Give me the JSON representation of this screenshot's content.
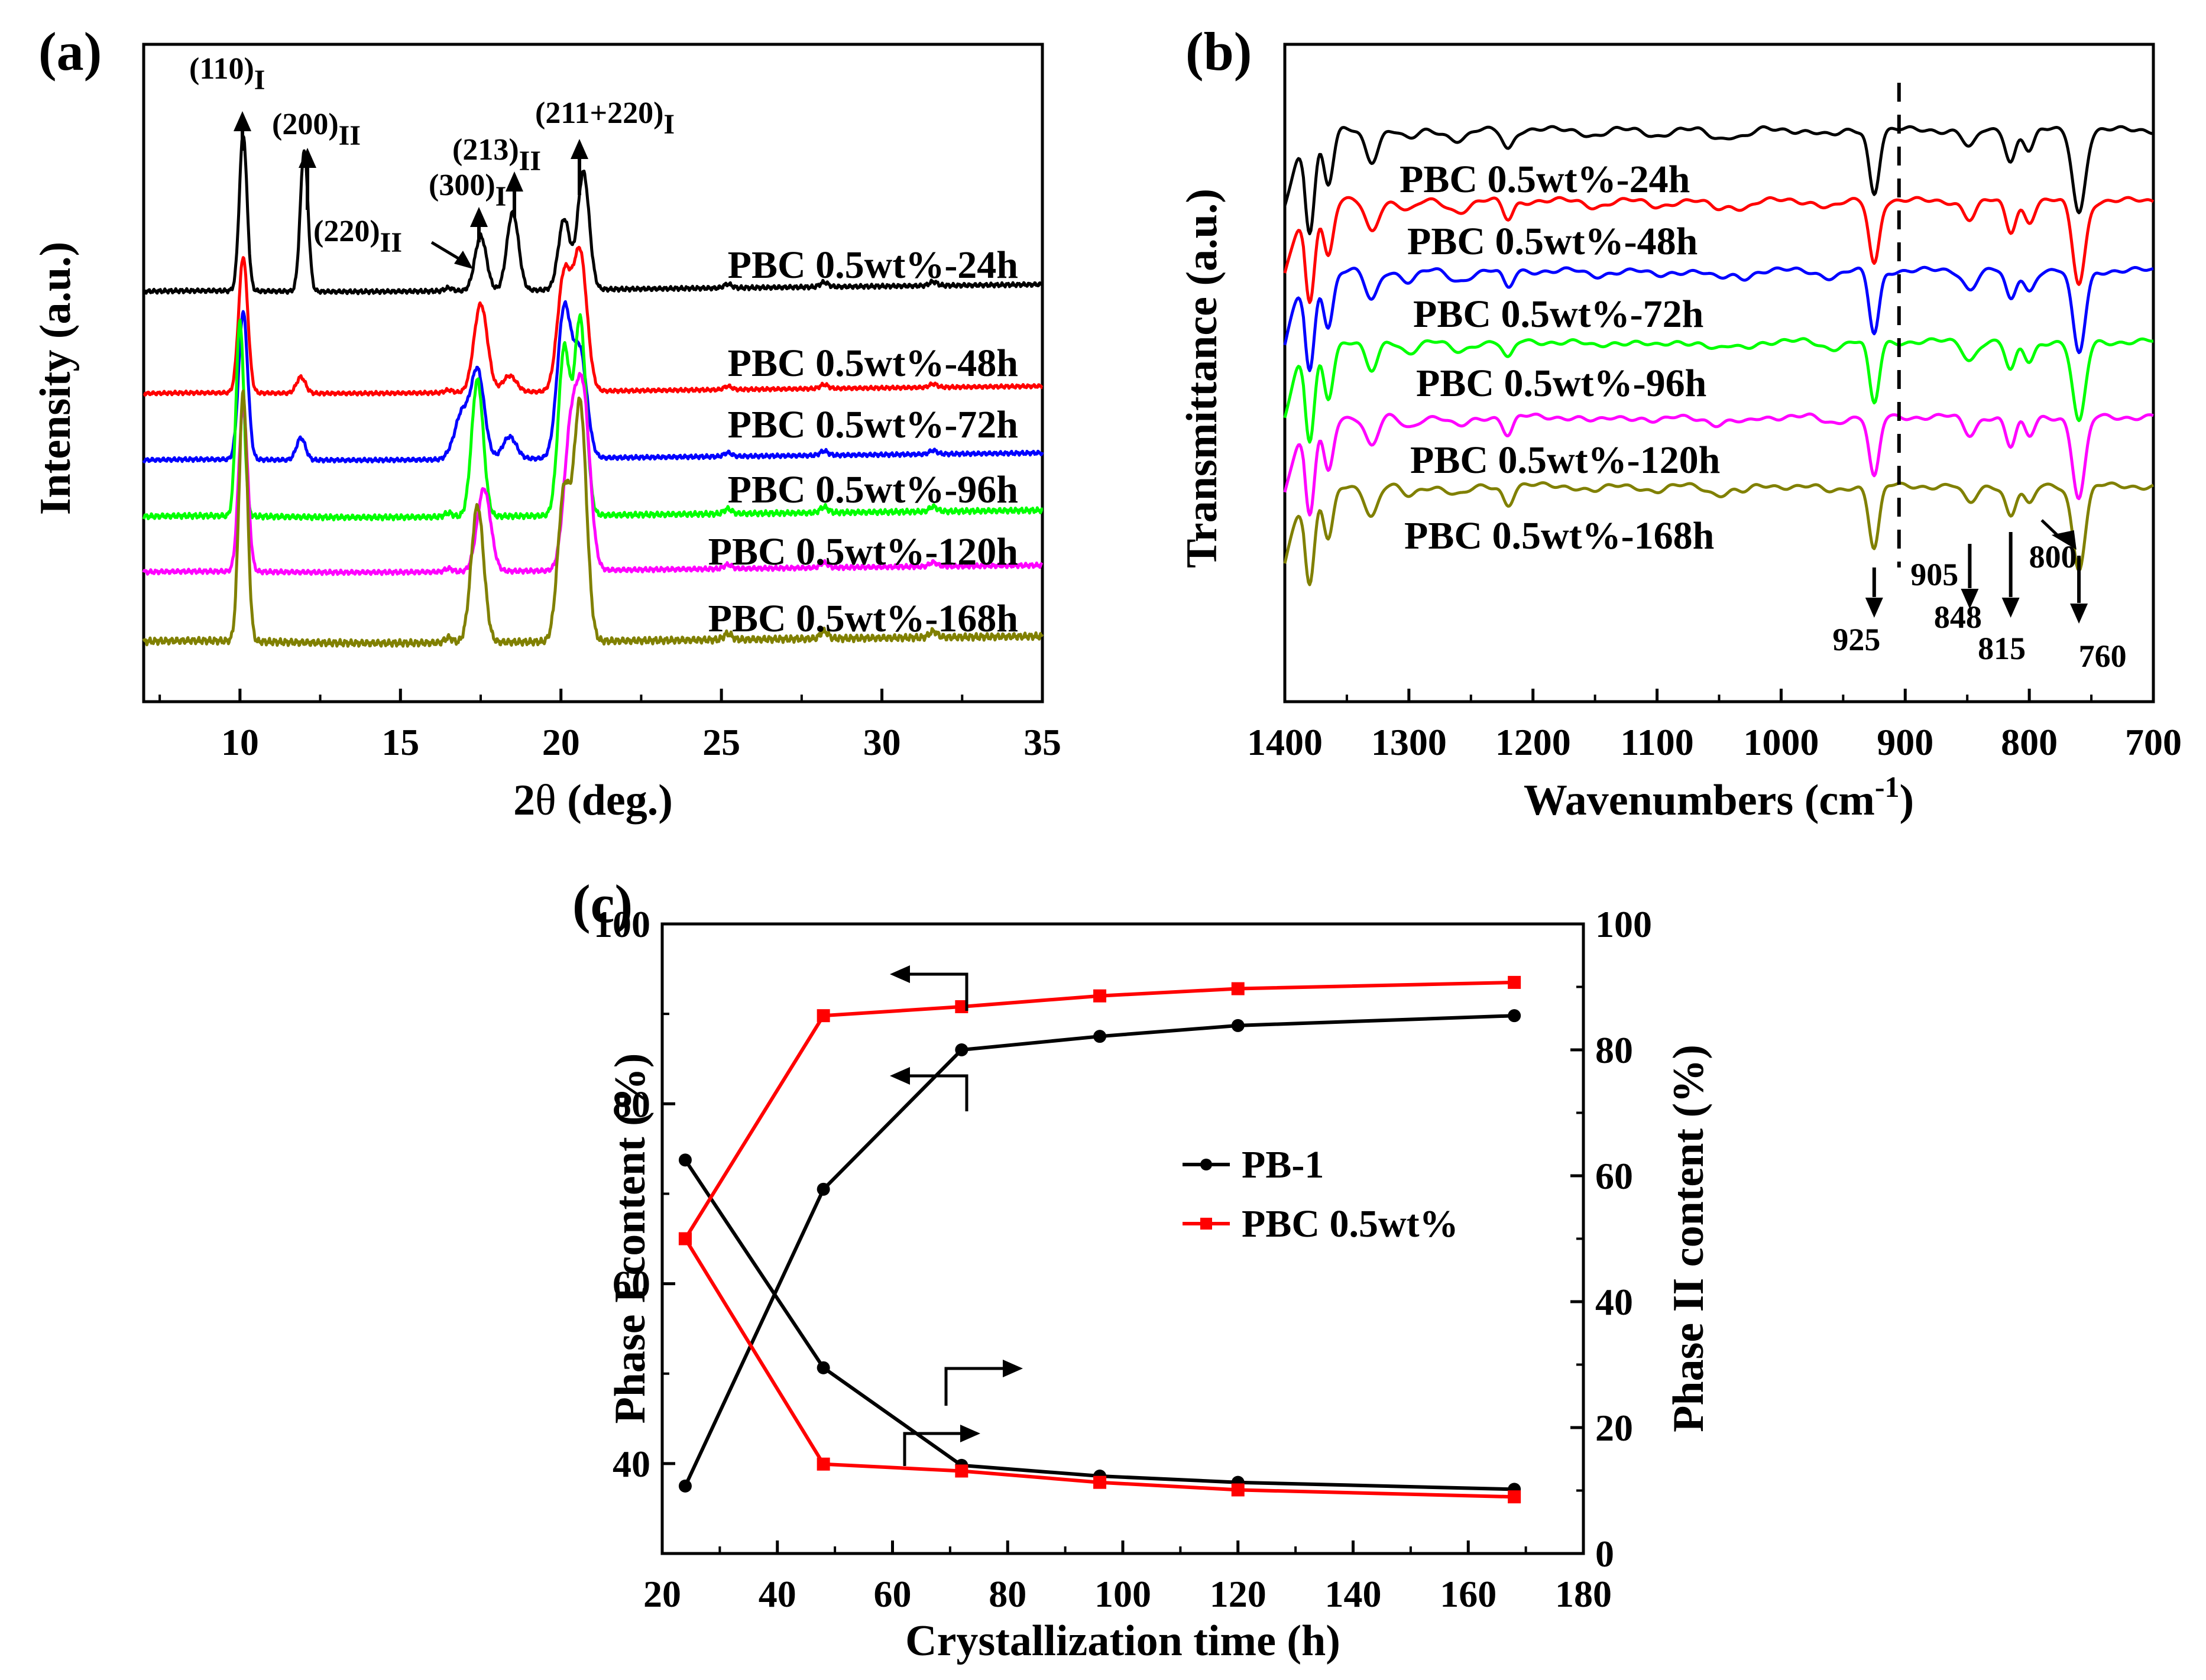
{
  "panels": {
    "a": {
      "panel_label": "(a)",
      "xlabel_prefix": "2",
      "xlabel_theta": "θ",
      "xlabel_suffix": " (deg.)",
      "ylabel": "Intensity (a.u.)",
      "peak_labels": [
        {
          "main": "(110)",
          "sub": "I"
        },
        {
          "main": "(200)",
          "sub": "II"
        },
        {
          "main": "(220)",
          "sub": "II"
        },
        {
          "main": "(300)",
          "sub": "I"
        },
        {
          "main": "(213)",
          "sub": "II"
        },
        {
          "main": "(211+220)",
          "sub": "I"
        }
      ]
    },
    "b": {
      "panel_label": "(b)",
      "xlabel_main": "Wavenumbers (cm",
      "xlabel_sup": "-1",
      "xlabel_close": ")",
      "ylabel": "Transmittance (a.u.)",
      "band_labels": [
        "925",
        "905",
        "848",
        "815",
        "800",
        "760"
      ]
    },
    "c": {
      "panel_label": "(c)",
      "xlabel": "Crystallization time (h)",
      "ylabel_left": "Phase I content (%)",
      "ylabel_right": "Phase II content (%)",
      "legend": [
        "PB-1",
        "PBC 0.5wt%"
      ]
    }
  },
  "chart_data": [
    {
      "type": "line",
      "panel": "a",
      "xlim": [
        7,
        35
      ],
      "x_ticks": [
        10,
        15,
        20,
        25,
        30,
        35
      ],
      "series": [
        {
          "name": "PBC 0.5wt%-24h",
          "color": "#000000",
          "peaks": [
            [
              10.1,
              1.0
            ],
            [
              12.0,
              0.9
            ],
            [
              17.5,
              0.35
            ],
            [
              18.5,
              0.5
            ],
            [
              20.1,
              0.45
            ],
            [
              20.7,
              0.75
            ]
          ]
        },
        {
          "name": "PBC 0.5wt%-48h",
          "color": "#ff0000",
          "peaks": [
            [
              10.1,
              1.0
            ],
            [
              11.9,
              0.12
            ],
            [
              17.5,
              0.65
            ],
            [
              18.4,
              0.12
            ],
            [
              20.1,
              0.85
            ],
            [
              20.6,
              1.0
            ]
          ]
        },
        {
          "name": "PBC 0.5wt%-72h",
          "color": "#0000ff",
          "peaks": [
            [
              10.1,
              1.0
            ],
            [
              11.9,
              0.15
            ],
            [
              16.9,
              0.3
            ],
            [
              17.4,
              0.6
            ],
            [
              18.4,
              0.15
            ],
            [
              20.1,
              1.0
            ],
            [
              20.6,
              0.7
            ]
          ]
        },
        {
          "name": "PBC 0.5wt%-96h",
          "color": "#00ff00",
          "peaks": [
            [
              10.0,
              1.0
            ],
            [
              17.4,
              0.7
            ],
            [
              20.1,
              0.85
            ],
            [
              20.6,
              1.0
            ]
          ]
        },
        {
          "name": "PBC 0.5wt%-120h",
          "color": "#ff00ff",
          "peaks": [
            [
              10.1,
              1.0
            ],
            [
              17.6,
              0.5
            ],
            [
              20.3,
              0.8
            ],
            [
              20.7,
              1.0
            ]
          ]
        },
        {
          "name": "PBC 0.5wt%-168h",
          "color": "#808000",
          "peaks": [
            [
              10.1,
              1.0
            ],
            [
              17.4,
              0.55
            ],
            [
              20.1,
              0.6
            ],
            [
              20.6,
              0.95
            ]
          ]
        }
      ]
    },
    {
      "type": "line",
      "panel": "b",
      "xlim": [
        1400,
        700
      ],
      "x_reversed": true,
      "x_ticks": [
        1400,
        1300,
        1200,
        1100,
        1000,
        900,
        800,
        700
      ],
      "reference_line": 905,
      "series": [
        {
          "name": "PBC 0.5wt%-24h",
          "color": "#000000"
        },
        {
          "name": "PBC 0.5wt%-48h",
          "color": "#ff0000"
        },
        {
          "name": "PBC 0.5wt%-72h",
          "color": "#0000ff"
        },
        {
          "name": "PBC 0.5wt%-96h",
          "color": "#00ff00"
        },
        {
          "name": "PBC 0.5wt%-120h",
          "color": "#ff00ff"
        },
        {
          "name": "PBC 0.5wt%-168h",
          "color": "#808000"
        }
      ],
      "bands": [
        1380,
        1365,
        1330,
        1220,
        925,
        848,
        815,
        800,
        760
      ]
    },
    {
      "type": "line",
      "panel": "c",
      "xlim": [
        20,
        180
      ],
      "x_ticks": [
        20,
        40,
        60,
        80,
        100,
        120,
        140,
        160,
        180
      ],
      "ylim_left": [
        30,
        100
      ],
      "y_ticks_left": [
        40,
        60,
        80,
        100
      ],
      "ylim_right": [
        0,
        100
      ],
      "y_ticks_right": [
        0,
        20,
        40,
        60,
        80,
        100
      ],
      "series": [
        {
          "name": "PB-1",
          "axis": "left",
          "color": "#000000",
          "marker": "circle",
          "x": [
            24,
            48,
            72,
            96,
            120,
            168
          ],
          "y": [
            37.5,
            70.5,
            86.0,
            87.5,
            88.7,
            89.8
          ]
        },
        {
          "name": "PB-1",
          "axis": "right",
          "color": "#000000",
          "marker": "circle",
          "x": [
            24,
            48,
            72,
            96,
            120,
            168
          ],
          "y": [
            62.5,
            29.5,
            14.0,
            12.3,
            11.3,
            10.2
          ]
        },
        {
          "name": "PBC 0.5wt%",
          "axis": "left",
          "color": "#ff0000",
          "marker": "square",
          "x": [
            24,
            48,
            72,
            96,
            120,
            168
          ],
          "y": [
            65.0,
            89.8,
            90.8,
            92.0,
            92.8,
            93.5
          ]
        },
        {
          "name": "PBC 0.5wt%",
          "axis": "right",
          "color": "#ff0000",
          "marker": "square",
          "x": [
            24,
            48,
            72,
            96,
            120,
            168
          ],
          "y": [
            50.0,
            14.2,
            13.1,
            11.3,
            10.1,
            9.0
          ]
        }
      ]
    }
  ]
}
